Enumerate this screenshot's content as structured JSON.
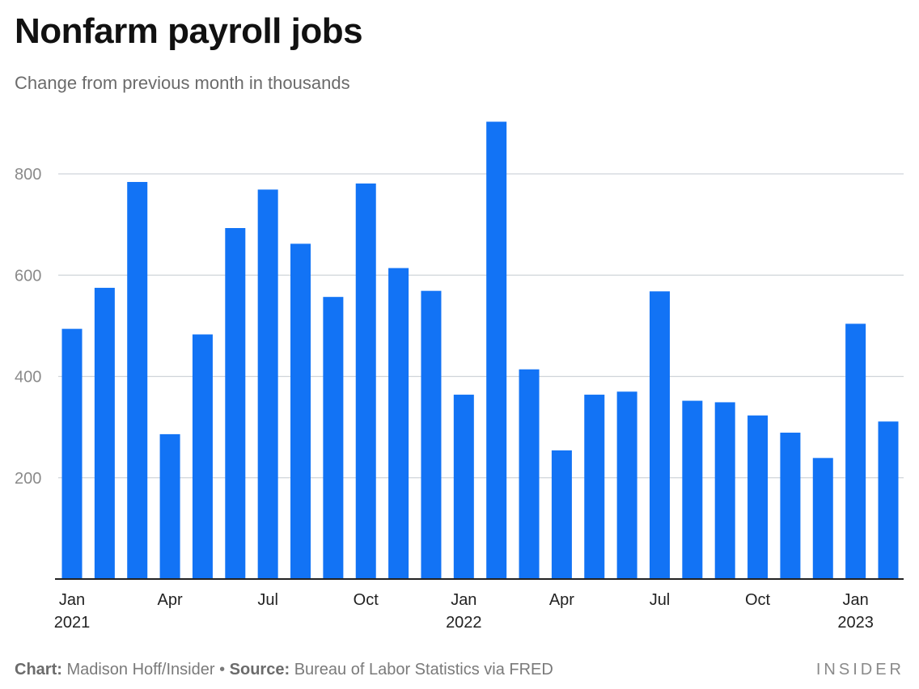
{
  "title": "Nonfarm payroll jobs",
  "subtitle": "Change from previous month in thousands",
  "footer": {
    "chart_label": "Chart:",
    "chart_value": "Madison Hoff/Insider",
    "separator": "•",
    "source_label": "Source:",
    "source_value": "Bureau of Labor Statistics via FRED"
  },
  "brand": "INSIDER",
  "colors": {
    "bar": "#1273F5",
    "grid": "#cfd4d9",
    "axis": "#222222"
  },
  "chart_data": {
    "type": "bar",
    "categories": [
      "2021-01",
      "2021-02",
      "2021-03",
      "2021-04",
      "2021-05",
      "2021-06",
      "2021-07",
      "2021-08",
      "2021-09",
      "2021-10",
      "2021-11",
      "2021-12",
      "2022-01",
      "2022-02",
      "2022-03",
      "2022-04",
      "2022-05",
      "2022-06",
      "2022-07",
      "2022-08",
      "2022-09",
      "2022-10",
      "2022-11",
      "2022-12",
      "2023-01",
      "2023-02"
    ],
    "values": [
      494,
      575,
      784,
      286,
      483,
      693,
      769,
      662,
      557,
      781,
      614,
      569,
      364,
      903,
      414,
      254,
      364,
      370,
      568,
      352,
      349,
      323,
      289,
      239,
      504,
      311
    ],
    "ylim": [
      0,
      920
    ],
    "yticks": [
      200,
      400,
      600,
      800
    ],
    "x_tick_labels": [
      {
        "index": 0,
        "line1": "Jan",
        "line2": "2021"
      },
      {
        "index": 3,
        "line1": "Apr",
        "line2": ""
      },
      {
        "index": 6,
        "line1": "Jul",
        "line2": ""
      },
      {
        "index": 9,
        "line1": "Oct",
        "line2": ""
      },
      {
        "index": 12,
        "line1": "Jan",
        "line2": "2022"
      },
      {
        "index": 15,
        "line1": "Apr",
        "line2": ""
      },
      {
        "index": 18,
        "line1": "Jul",
        "line2": ""
      },
      {
        "index": 21,
        "line1": "Oct",
        "line2": ""
      },
      {
        "index": 24,
        "line1": "Jan",
        "line2": "2023"
      }
    ],
    "grid": true,
    "legend": "none"
  }
}
